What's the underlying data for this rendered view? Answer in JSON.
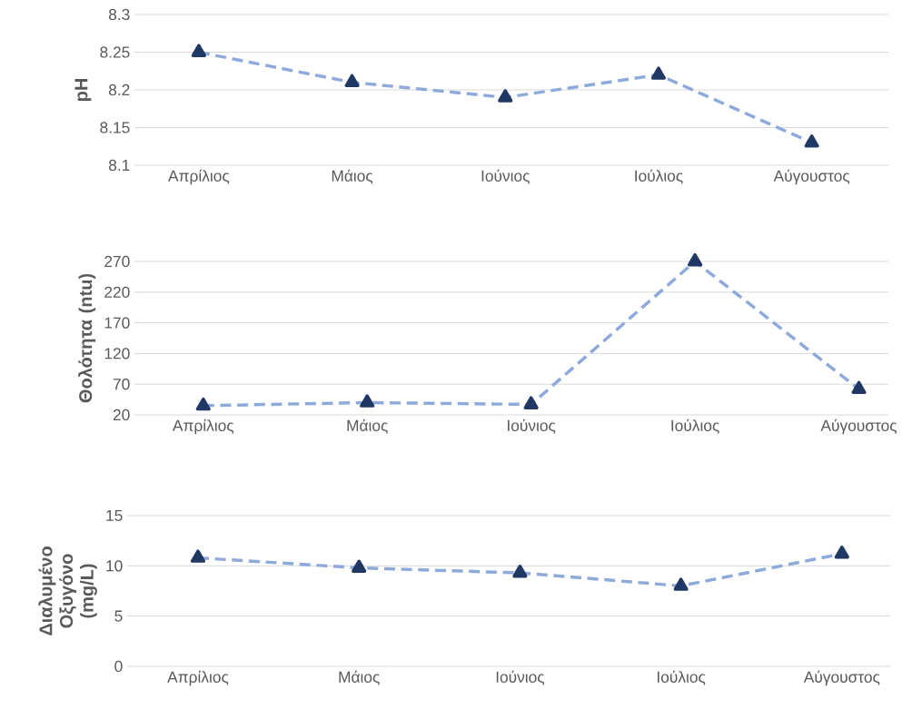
{
  "chart_data": [
    {
      "type": "line",
      "ylabel": "pH",
      "categories": [
        "Απρίλιος",
        "Μάιος",
        "Ιούνιος",
        "Ιούλιος",
        "Αύγουστος"
      ],
      "series": [
        {
          "color": "#8eaadb",
          "values": [
            8.25,
            8.21,
            8.19,
            8.22,
            8.13
          ]
        }
      ],
      "ylim": [
        8.1,
        8.3
      ],
      "yticks": [
        8.1,
        8.15,
        8.2,
        8.25,
        8.3
      ],
      "grid": "y",
      "marker": "triangle",
      "line_style": "dashed"
    },
    {
      "type": "line",
      "ylabel": "Θολότητα (ntu)",
      "categories": [
        "Απρίλιος",
        "Μάιος",
        "Ιούνιος",
        "Ιούλιος",
        "Αύγουστος"
      ],
      "series": [
        {
          "color": "#8eaadb",
          "values": [
            35,
            40,
            37,
            270,
            62
          ]
        }
      ],
      "ylim": [
        20,
        270
      ],
      "yticks": [
        20,
        70,
        120,
        170,
        220,
        270
      ],
      "grid": "y",
      "marker": "triangle",
      "line_style": "dashed"
    },
    {
      "type": "line",
      "ylabel": "Διαλυμένο Οξυγόνο (mg/L)",
      "categories": [
        "Απρίλιος",
        "Μάιος",
        "Ιούνιος",
        "Ιούλιος",
        "Αύγουστος"
      ],
      "series": [
        {
          "color": "#8eaadb",
          "values": [
            10.8,
            9.8,
            9.3,
            8.0,
            11.2
          ]
        }
      ],
      "ylim": [
        0,
        15
      ],
      "yticks": [
        0,
        5,
        10,
        15
      ],
      "grid": "y",
      "marker": "triangle",
      "line_style": "dashed"
    }
  ]
}
